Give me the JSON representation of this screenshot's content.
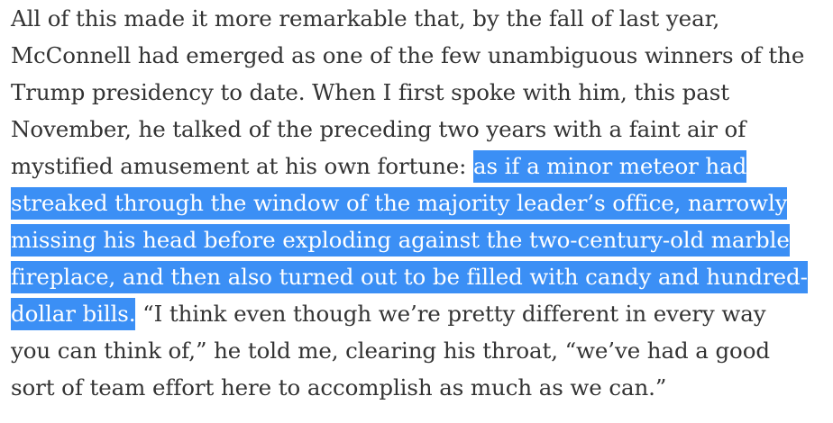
{
  "article": {
    "paragraph": {
      "lines": [
        {
          "before": "All of this made it more remarkable that, by the fall of last year,",
          "selected": "",
          "after": ""
        },
        {
          "before": "McConnell had emerged as one of the few unambiguous winners of the",
          "selected": "",
          "after": ""
        },
        {
          "before": "Trump presidency to date. When I first spoke with him, this past",
          "selected": "",
          "after": ""
        },
        {
          "before": "November, he talked of the preceding two years with a faint air of",
          "selected": "",
          "after": ""
        },
        {
          "before": "mystified amusement at his own fortune: ",
          "selected": "as if a minor meteor had",
          "after": ""
        },
        {
          "before": "",
          "selected": "streaked through the window of the majority leader’s office, narrowly",
          "after": ""
        },
        {
          "before": "",
          "selected": "missing his head before exploding against the two-century-old marble",
          "after": ""
        },
        {
          "before": "",
          "selected": "fireplace, and then also turned out to be filled with candy and hundred-",
          "after": ""
        },
        {
          "before": "",
          "selected": "dollar bills.",
          "after": " “I think even though we’re pretty different in every way"
        },
        {
          "before": "you can think of,” he told me, clearing his throat, “we’ve had a good",
          "selected": "",
          "after": ""
        },
        {
          "before": "sort of team effort here to accomplish as much as we can.”",
          "selected": "",
          "after": ""
        }
      ]
    }
  },
  "colors": {
    "text": "#333333",
    "selection_background": "#3b8ff5",
    "selection_text": "#ffffff",
    "page_background": "#ffffff"
  }
}
